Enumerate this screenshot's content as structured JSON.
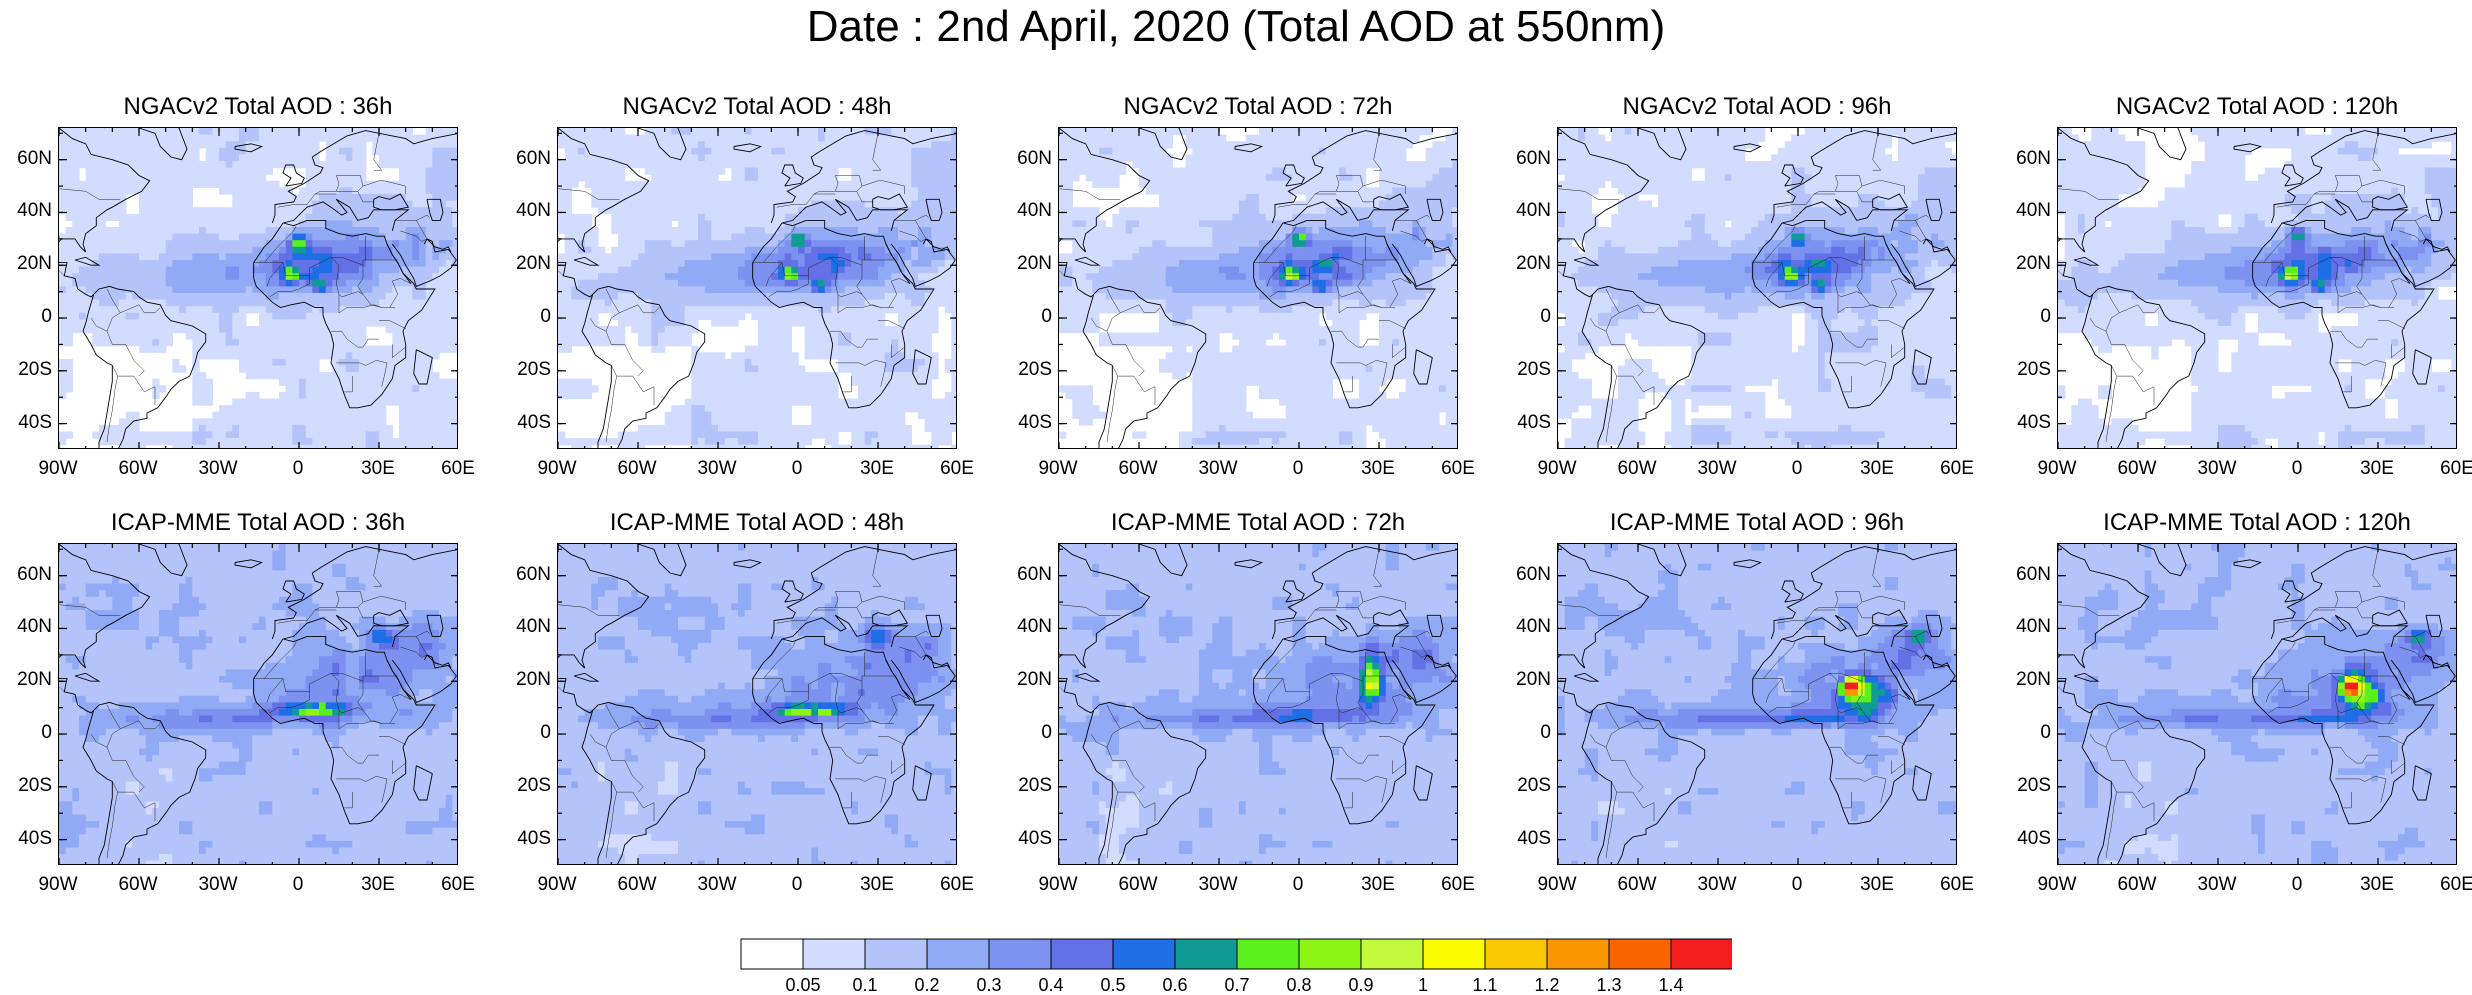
{
  "title": "Date : 2nd April, 2020 (Total AOD at 550nm)",
  "panels": [
    {
      "title": "NGACv2 Total AOD : 36h",
      "model": "ngac"
    },
    {
      "title": "NGACv2 Total AOD : 48h",
      "model": "ngac"
    },
    {
      "title": "NGACv2 Total AOD : 72h",
      "model": "ngac"
    },
    {
      "title": "NGACv2 Total AOD : 96h",
      "model": "ngac"
    },
    {
      "title": "NGACv2 Total AOD : 120h",
      "model": "ngac"
    },
    {
      "title": "ICAP-MME Total AOD : 36h",
      "model": "icap"
    },
    {
      "title": "ICAP-MME Total AOD : 48h",
      "model": "icap"
    },
    {
      "title": "ICAP-MME Total AOD : 72h",
      "model": "icap"
    },
    {
      "title": "ICAP-MME Total AOD : 96h",
      "model": "icap"
    },
    {
      "title": "ICAP-MME Total AOD : 120h",
      "model": "icap"
    }
  ],
  "lat_ticks": [
    "60N",
    "40N",
    "20N",
    "0",
    "20S",
    "40S"
  ],
  "lat_values": [
    60,
    40,
    20,
    0,
    -20,
    -40
  ],
  "lon_ticks": [
    "90W",
    "60W",
    "30W",
    "0",
    "30E",
    "60E"
  ],
  "lon_values": [
    -90,
    -60,
    -30,
    0,
    30,
    60
  ],
  "map_extent": {
    "lon": [
      -90,
      60
    ],
    "lat": [
      -50,
      72
    ]
  },
  "colorbar": {
    "labels": [
      "0.05",
      "0.1",
      "0.2",
      "0.3",
      "0.4",
      "0.5",
      "0.6",
      "0.7",
      "0.8",
      "0.9",
      "1",
      "1.1",
      "1.2",
      "1.3",
      "1.4"
    ],
    "colors": [
      "#ffffff",
      "#d2dcff",
      "#b4c3fa",
      "#91aaf5",
      "#7d91f0",
      "#6470e6",
      "#1e6ee6",
      "#119b95",
      "#5af01e",
      "#8cf514",
      "#c3fa3c",
      "#fafa00",
      "#fac800",
      "#fa9600",
      "#fa6400",
      "#f51e1e"
    ]
  }
}
